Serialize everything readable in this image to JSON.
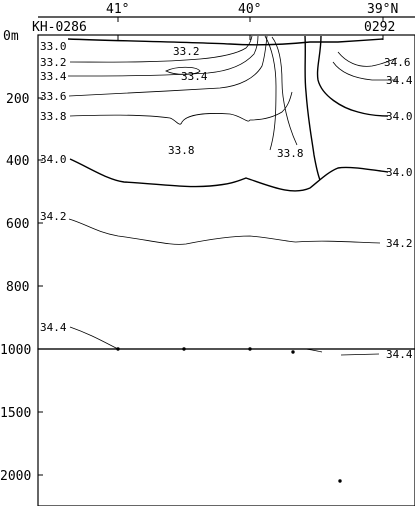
{
  "chart_data": {
    "type": "contour",
    "station_start_label": "KH-0286",
    "station_end_label": "0292",
    "x_tick_labels": [
      "41°",
      "40°",
      "39°N"
    ],
    "y_tick_labels": [
      "0m",
      "200",
      "400",
      "600",
      "800",
      "1000",
      "1500",
      "2000"
    ],
    "upper_panel_depth_range_m": [
      0,
      1000
    ],
    "lower_panel_depth_range_m": [
      1000,
      2200
    ],
    "isohaline_labels": [
      "33.0",
      "33.2",
      "33.2",
      "33.4",
      "33.4",
      "33.6",
      "33.8",
      "33.8",
      "33.8",
      "34.0",
      "34.0",
      "34.0",
      "34.6",
      "34.4",
      "34.2",
      "34.2",
      "34.4",
      "34.4"
    ],
    "sample_points": [
      {
        "latitude_label": "41°",
        "depth_m": 1000
      },
      {
        "latitude_label": "between 41° and 40°",
        "depth_m": 1000
      },
      {
        "latitude_label": "40°",
        "depth_m": 1000
      },
      {
        "latitude_label": "between 40° and 39°N",
        "depth_m": 1010
      },
      {
        "latitude_label": "near 39°N",
        "depth_m": 2020
      }
    ]
  }
}
